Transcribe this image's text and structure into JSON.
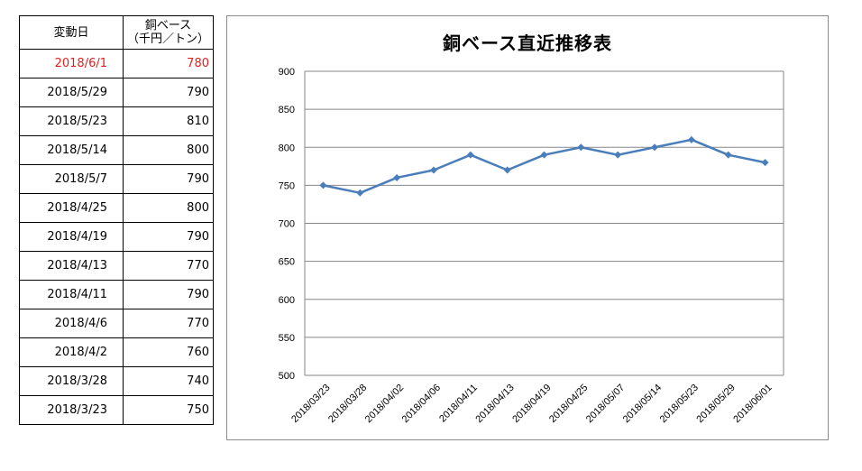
{
  "table": {
    "header": {
      "date_label": "変動日",
      "price_label_line1": "銅ベース",
      "price_label_line2": "（千円／トン）"
    },
    "highlight_color": "#e02020",
    "rows": [
      {
        "date": "2018/6/1",
        "price": "780",
        "highlight": true
      },
      {
        "date": "2018/5/29",
        "price": "790",
        "highlight": false
      },
      {
        "date": "2018/5/23",
        "price": "810",
        "highlight": false
      },
      {
        "date": "2018/5/14",
        "price": "800",
        "highlight": false
      },
      {
        "date": "2018/5/7",
        "price": "790",
        "highlight": false
      },
      {
        "date": "2018/4/25",
        "price": "800",
        "highlight": false
      },
      {
        "date": "2018/4/19",
        "price": "790",
        "highlight": false
      },
      {
        "date": "2018/4/13",
        "price": "770",
        "highlight": false
      },
      {
        "date": "2018/4/11",
        "price": "790",
        "highlight": false
      },
      {
        "date": "2018/4/6",
        "price": "770",
        "highlight": false
      },
      {
        "date": "2018/4/2",
        "price": "760",
        "highlight": false
      },
      {
        "date": "2018/3/28",
        "price": "740",
        "highlight": false
      },
      {
        "date": "2018/3/23",
        "price": "750",
        "highlight": false
      }
    ]
  },
  "chart_data": {
    "type": "line",
    "title": "銅ベース直近推移表",
    "xlabel": "",
    "ylabel": "",
    "categories": [
      "2018/03/23",
      "2018/03/28",
      "2018/04/02",
      "2018/04/06",
      "2018/04/11",
      "2018/04/13",
      "2018/04/19",
      "2018/04/25",
      "2018/05/07",
      "2018/05/14",
      "2018/05/23",
      "2018/05/29",
      "2018/06/01"
    ],
    "series": [
      {
        "values": [
          750,
          740,
          760,
          770,
          790,
          770,
          790,
          800,
          790,
          800,
          810,
          790,
          780
        ],
        "color": "#4a7ebb",
        "marker": "diamond"
      }
    ],
    "ylim": [
      500,
      900
    ],
    "yticks": [
      500,
      550,
      600,
      650,
      700,
      750,
      800,
      850,
      900
    ],
    "grid": true,
    "legend": "none"
  }
}
